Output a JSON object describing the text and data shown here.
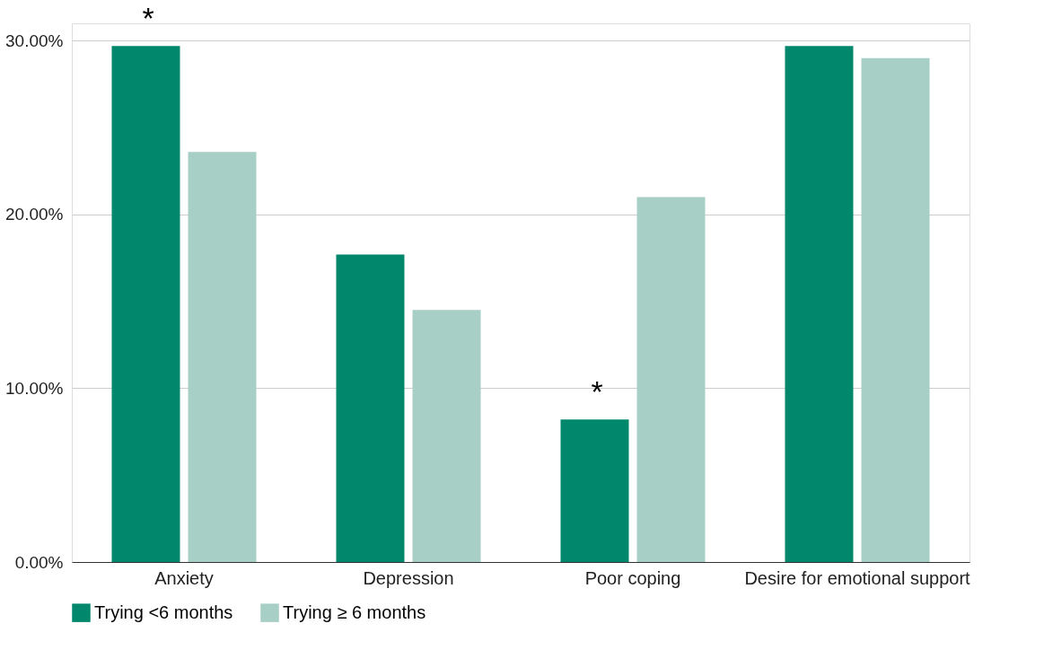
{
  "chart_data": {
    "type": "bar",
    "categories": [
      "Anxiety",
      "Depression",
      "Poor coping",
      "Desire for emotional support"
    ],
    "series": [
      {
        "name": "Trying <6 months",
        "color": "#00876c",
        "values": [
          29.7,
          17.7,
          8.2,
          29.7
        ]
      },
      {
        "name": "Trying ≥ 6 months",
        "color": "#a8cfc5",
        "values": [
          23.6,
          14.5,
          21.0,
          29.0
        ]
      }
    ],
    "ylim": [
      0,
      31
    ],
    "yticks": [
      {
        "value": 0,
        "label": "0.00%"
      },
      {
        "value": 10,
        "label": "10.00%"
      },
      {
        "value": 20,
        "label": "20.00%"
      },
      {
        "value": 30,
        "label": "30.00%"
      }
    ],
    "grid": "y",
    "legend": "bottom",
    "annotations": [
      {
        "text": "*",
        "x": "Anxiety",
        "y": 29.7
      },
      {
        "text": "*",
        "x": "Poor coping",
        "y": 8.2
      }
    ]
  }
}
